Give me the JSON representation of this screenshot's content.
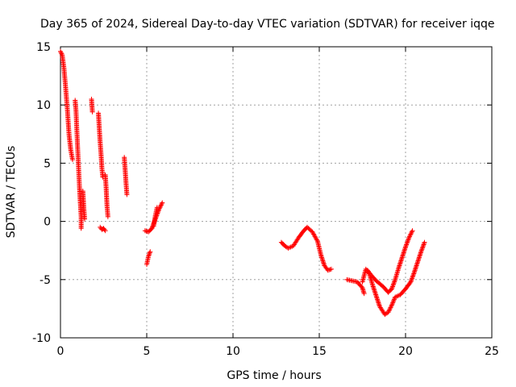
{
  "chart_data": {
    "type": "scatter",
    "title": "Day 365 of 2024, Sidereal Day-to-day VTEC variation (SDTVAR) for receiver iqqe",
    "xlabel": "GPS time / hours",
    "ylabel": "SDTVAR / TECUs",
    "xlim": [
      0,
      25
    ],
    "ylim": [
      -10,
      15
    ],
    "x_ticks": [
      0,
      5,
      10,
      15,
      20,
      25
    ],
    "x_tick_labels": [
      "0",
      "5",
      "10",
      "15",
      "20",
      "25"
    ],
    "y_ticks": [
      -10,
      -5,
      0,
      5,
      10,
      15
    ],
    "y_tick_labels": [
      "-10",
      "-5",
      "0",
      "5",
      "10",
      "15"
    ],
    "grid": true,
    "marker": "plus",
    "color": "#ff0000",
    "series": [
      {
        "name": "SDTVAR",
        "segments": [
          [
            [
              0.0,
              14.6
            ],
            [
              0.1,
              14.3
            ],
            [
              0.2,
              13.2
            ],
            [
              0.3,
              11.5
            ],
            [
              0.4,
              9.6
            ],
            [
              0.5,
              7.4
            ],
            [
              0.6,
              6.1
            ],
            [
              0.7,
              5.3
            ]
          ],
          [
            [
              0.85,
              10.4
            ],
            [
              0.9,
              9.5
            ],
            [
              0.95,
              7.8
            ],
            [
              1.0,
              6.2
            ],
            [
              1.05,
              4.6
            ],
            [
              1.1,
              3.0
            ],
            [
              1.15,
              1.6
            ],
            [
              1.2,
              0.4
            ],
            [
              1.2,
              -0.6
            ]
          ],
          [
            [
              1.3,
              2.6
            ],
            [
              1.35,
              1.2
            ],
            [
              1.4,
              0.2
            ]
          ],
          [
            [
              1.8,
              10.5
            ],
            [
              1.85,
              9.4
            ]
          ],
          [
            [
              2.2,
              9.3
            ],
            [
              2.25,
              8.0
            ],
            [
              2.3,
              6.8
            ],
            [
              2.35,
              5.8
            ],
            [
              2.4,
              4.6
            ],
            [
              2.45,
              3.8
            ]
          ],
          [
            [
              2.3,
              -0.5
            ],
            [
              2.4,
              -0.7
            ],
            [
              2.5,
              -0.6
            ],
            [
              2.6,
              -0.8
            ]
          ],
          [
            [
              2.6,
              4.0
            ],
            [
              2.65,
              2.8
            ],
            [
              2.7,
              1.3
            ],
            [
              2.75,
              0.4
            ]
          ],
          [
            [
              3.7,
              5.5
            ],
            [
              3.75,
              4.4
            ],
            [
              3.8,
              3.3
            ],
            [
              3.85,
              2.3
            ]
          ],
          [
            [
              4.9,
              -0.8
            ],
            [
              5.1,
              -0.9
            ],
            [
              5.3,
              -0.6
            ],
            [
              5.5,
              0.2
            ],
            [
              5.7,
              1.0
            ],
            [
              5.9,
              1.6
            ]
          ],
          [
            [
              5.0,
              -3.7
            ],
            [
              5.1,
              -3.0
            ],
            [
              5.2,
              -2.6
            ]
          ],
          [
            [
              5.4,
              -0.4
            ],
            [
              5.5,
              0.5
            ],
            [
              5.6,
              1.2
            ]
          ],
          [
            [
              12.8,
              -1.8
            ],
            [
              13.0,
              -2.1
            ],
            [
              13.2,
              -2.3
            ],
            [
              13.5,
              -2.1
            ],
            [
              13.8,
              -1.4
            ],
            [
              14.1,
              -0.8
            ],
            [
              14.3,
              -0.5
            ],
            [
              14.6,
              -0.9
            ],
            [
              14.9,
              -1.7
            ],
            [
              15.1,
              -2.9
            ],
            [
              15.3,
              -3.8
            ],
            [
              15.5,
              -4.2
            ],
            [
              15.7,
              -4.1
            ]
          ],
          [
            [
              16.6,
              -5.0
            ],
            [
              16.9,
              -5.1
            ],
            [
              17.2,
              -5.2
            ],
            [
              17.5,
              -5.7
            ],
            [
              17.6,
              -6.2
            ]
          ],
          [
            [
              17.5,
              -5.2
            ],
            [
              17.7,
              -4.1
            ],
            [
              17.9,
              -4.5
            ],
            [
              18.1,
              -5.5
            ],
            [
              18.3,
              -6.4
            ],
            [
              18.5,
              -7.3
            ],
            [
              18.8,
              -8.0
            ],
            [
              19.0,
              -7.8
            ],
            [
              19.2,
              -7.2
            ],
            [
              19.4,
              -6.5
            ],
            [
              19.7,
              -6.3
            ],
            [
              20.0,
              -5.8
            ],
            [
              20.3,
              -5.2
            ],
            [
              20.5,
              -4.4
            ],
            [
              20.7,
              -3.5
            ],
            [
              20.9,
              -2.6
            ],
            [
              21.1,
              -1.8
            ]
          ],
          [
            [
              17.8,
              -4.2
            ],
            [
              18.0,
              -4.6
            ],
            [
              18.3,
              -5.1
            ],
            [
              18.7,
              -5.6
            ],
            [
              19.0,
              -6.1
            ],
            [
              19.2,
              -5.8
            ],
            [
              19.4,
              -5.0
            ],
            [
              19.6,
              -4.0
            ],
            [
              19.8,
              -3.1
            ],
            [
              20.0,
              -2.2
            ],
            [
              20.2,
              -1.4
            ],
            [
              20.4,
              -0.8
            ]
          ]
        ]
      }
    ]
  }
}
